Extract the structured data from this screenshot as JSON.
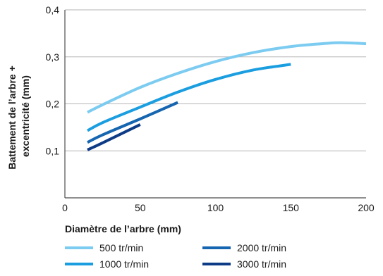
{
  "chart_data": {
    "type": "line",
    "title": "",
    "xlabel": "Diamètre de l’arbre (mm)",
    "ylabel_lines": [
      "Battement de l’arbre +",
      "excentricité (mm)"
    ],
    "xlim": [
      0,
      200
    ],
    "ylim": [
      0,
      0.4
    ],
    "x_ticks": [
      0,
      50,
      100,
      150,
      200
    ],
    "x_tick_labels": [
      "0",
      "50",
      "100",
      "150",
      "200"
    ],
    "y_ticks": [
      0.1,
      0.2,
      0.3,
      0.4
    ],
    "y_tick_labels": [
      "0,1",
      "0,2",
      "0,3",
      "0,4"
    ],
    "grid": "horizontal",
    "legend_position": "bottom",
    "series": [
      {
        "name": "500 tr/min",
        "color": "#7ccbf0",
        "x": [
          15,
          25,
          50,
          75,
          100,
          125,
          150,
          175,
          185,
          200
        ],
        "y": [
          0.182,
          0.198,
          0.235,
          0.265,
          0.29,
          0.309,
          0.322,
          0.329,
          0.33,
          0.328
        ]
      },
      {
        "name": "1000 tr/min",
        "color": "#1b9ee0",
        "x": [
          15,
          25,
          50,
          75,
          100,
          125,
          150
        ],
        "y": [
          0.143,
          0.16,
          0.193,
          0.225,
          0.252,
          0.272,
          0.284
        ]
      },
      {
        "name": "2000 tr/min",
        "color": "#1565b0",
        "x": [
          15,
          25,
          50,
          75
        ],
        "y": [
          0.118,
          0.134,
          0.168,
          0.203
        ]
      },
      {
        "name": "3000 tr/min",
        "color": "#0d3b86",
        "x": [
          15,
          25,
          50
        ],
        "y": [
          0.102,
          0.117,
          0.156
        ]
      }
    ]
  }
}
